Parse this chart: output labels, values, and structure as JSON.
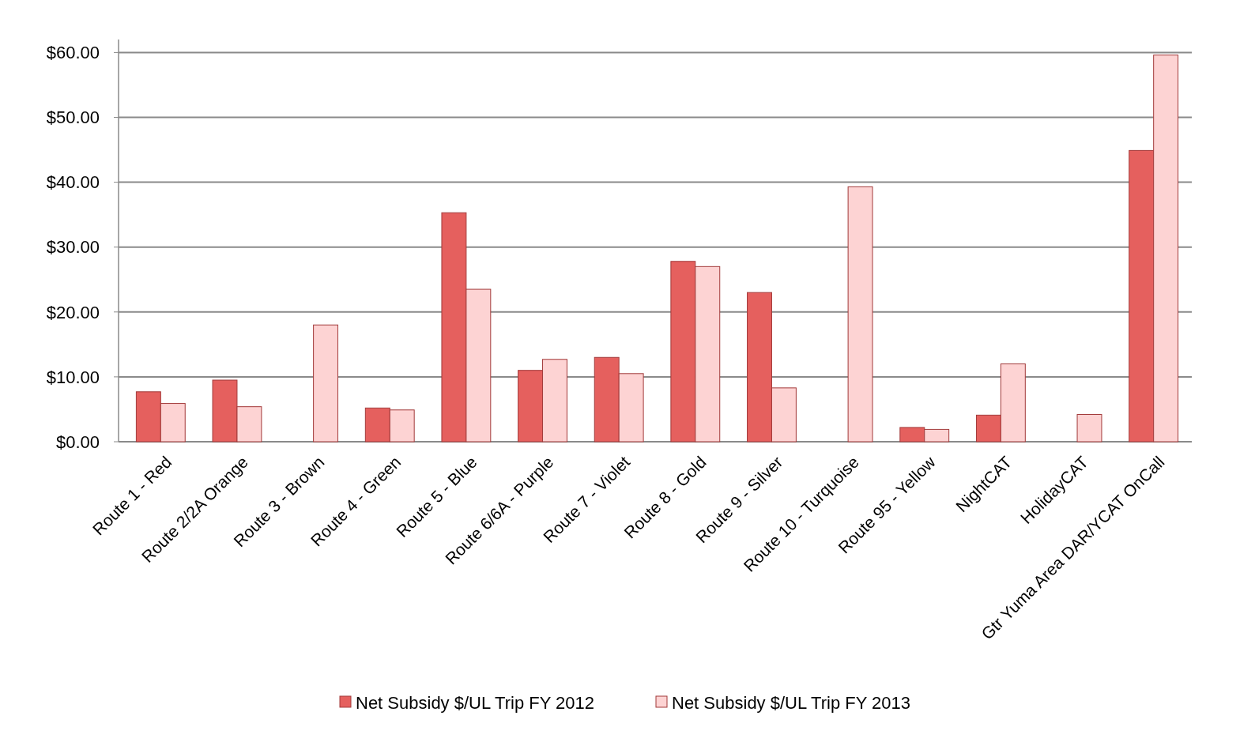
{
  "chart_data": {
    "type": "bar",
    "categories": [
      "Route 1 - Red",
      "Route 2/2A  Orange",
      "Route 3 - Brown",
      "Route 4 - Green",
      "Route 5 - Blue",
      "Route 6/6A - Purple",
      "Route 7 - Violet",
      "Route 8 - Gold",
      "Route 9 - Silver",
      "Route 10 - Turquoise",
      "Route 95 - Yellow",
      "NightCAT",
      "HolidayCAT",
      "Gtr Yuma Area DAR/YCAT OnCall"
    ],
    "series": [
      {
        "name": "Net Subsidy $/UL Trip FY 2012",
        "color": "#e5605e",
        "values": [
          7.7,
          9.5,
          0,
          5.2,
          35.3,
          11.0,
          13.0,
          27.8,
          23.0,
          0,
          2.2,
          4.1,
          0,
          44.9
        ]
      },
      {
        "name": "Net Subsidy $/UL Trip FY 2013",
        "color": "#fdd3d3",
        "values": [
          5.9,
          5.4,
          18.0,
          4.9,
          23.5,
          12.7,
          10.5,
          27.0,
          8.3,
          39.3,
          1.9,
          12.0,
          4.2,
          59.6
        ]
      }
    ],
    "ylim": [
      0,
      62
    ],
    "yticks": [
      {
        "value": 0,
        "label": "$0.00"
      },
      {
        "value": 10,
        "label": "$10.00"
      },
      {
        "value": 20,
        "label": "$20.00"
      },
      {
        "value": 30,
        "label": "$30.00"
      },
      {
        "value": 40,
        "label": "$40.00"
      },
      {
        "value": 50,
        "label": "$50.00"
      },
      {
        "value": 60,
        "label": "$60.00"
      }
    ],
    "grid": "y",
    "legend": "bottom"
  }
}
